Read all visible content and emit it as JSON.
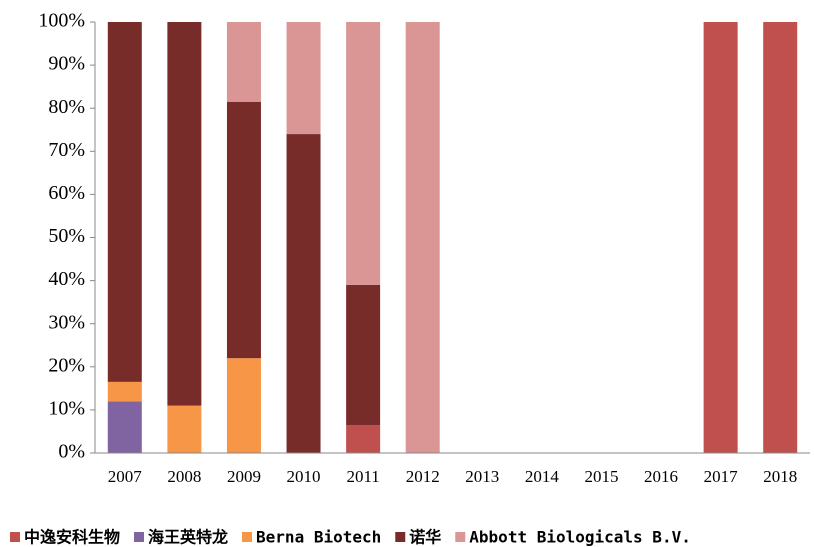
{
  "chart_data": {
    "type": "stacked_bar",
    "categories": [
      "2007",
      "2008",
      "2009",
      "2010",
      "2011",
      "2012",
      "2013",
      "2014",
      "2015",
      "2016",
      "2017",
      "2018"
    ],
    "series": [
      {
        "name": "中逸安科生物",
        "color": "#c0504d",
        "values": [
          0,
          0,
          0,
          0,
          6.5,
          0,
          0,
          0,
          0,
          0,
          100,
          100
        ]
      },
      {
        "name": "海王英特龙",
        "color": "#8064a2",
        "values": [
          12,
          0,
          0,
          0,
          0,
          0,
          0,
          0,
          0,
          0,
          0,
          0
        ]
      },
      {
        "name": "Berna Biotech",
        "color": "#f79646",
        "values": [
          4.5,
          11,
          22,
          0,
          0,
          0,
          0,
          0,
          0,
          0,
          0,
          0
        ]
      },
      {
        "name": "诺华",
        "color": "#772c2a",
        "values": [
          83.5,
          89,
          59.5,
          74,
          32.5,
          0,
          0,
          0,
          0,
          0,
          0,
          0
        ]
      },
      {
        "name": "Abbott Biologicals B.V.",
        "color": "#d99694",
        "values": [
          0,
          0,
          18.5,
          26,
          61,
          100,
          0,
          0,
          0,
          0,
          0,
          0
        ]
      }
    ],
    "ylim": [
      0,
      100
    ],
    "yticks": [
      {
        "value": 0,
        "label": "0%"
      },
      {
        "value": 10,
        "label": "10%"
      },
      {
        "value": 20,
        "label": "20%"
      },
      {
        "value": 30,
        "label": "30%"
      },
      {
        "value": 40,
        "label": "40%"
      },
      {
        "value": 50,
        "label": "50%"
      },
      {
        "value": 60,
        "label": "60%"
      },
      {
        "value": 70,
        "label": "70%"
      },
      {
        "value": 80,
        "label": "80%"
      },
      {
        "value": 90,
        "label": "90%"
      },
      {
        "value": 100,
        "label": "100%"
      }
    ],
    "legend": "bottom"
  }
}
